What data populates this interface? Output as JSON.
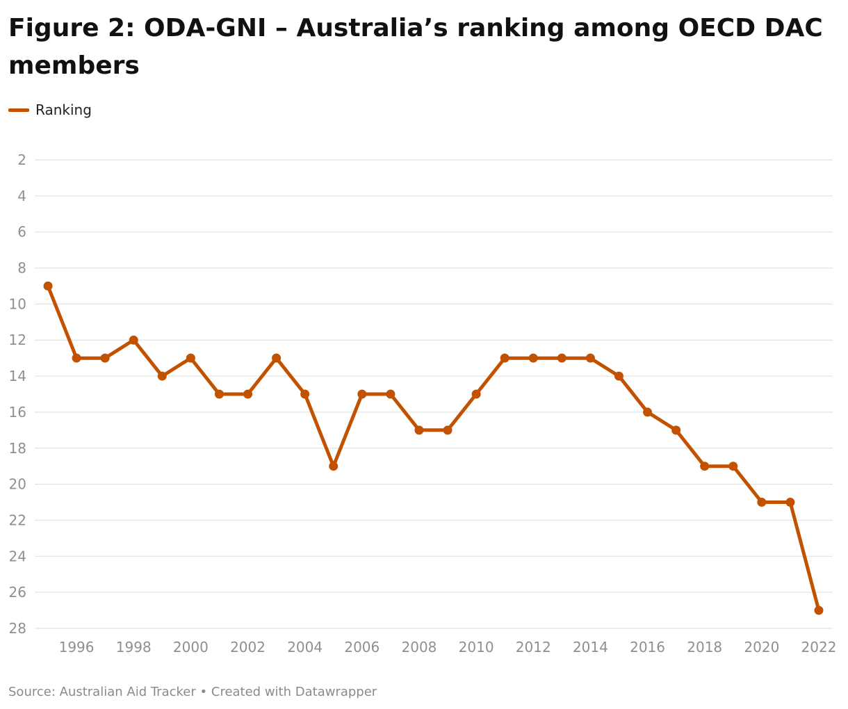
{
  "title": "Figure 2: ODA-GNI – Australia’s ranking among OECD DAC members",
  "legend": {
    "label": "Ranking"
  },
  "footer": {
    "source_label": "Source:",
    "source": "Australian Aid Tracker",
    "separator": "•",
    "credit": "Created with Datawrapper"
  },
  "colors": {
    "line": "#c25100",
    "grid": "#e2e2e2",
    "tick_text": "#8f8f8f"
  },
  "chart_data": {
    "type": "line",
    "title": "Figure 2: ODA-GNI – Australia’s ranking among OECD DAC members",
    "xlabel": "",
    "ylabel": "",
    "y_inverted": true,
    "ylim": [
      2,
      28
    ],
    "xlim": [
      1995,
      2022
    ],
    "y_ticks": [
      2,
      4,
      6,
      8,
      10,
      12,
      14,
      16,
      18,
      20,
      22,
      24,
      26,
      28
    ],
    "x_ticks": [
      1996,
      1998,
      2000,
      2002,
      2004,
      2006,
      2008,
      2010,
      2012,
      2014,
      2016,
      2018,
      2020,
      2022
    ],
    "grid": true,
    "legend_position": "top-left",
    "x": [
      1995,
      1996,
      1997,
      1998,
      1999,
      2000,
      2001,
      2002,
      2003,
      2004,
      2005,
      2006,
      2007,
      2008,
      2009,
      2010,
      2011,
      2012,
      2013,
      2014,
      2015,
      2016,
      2017,
      2018,
      2019,
      2020,
      2021,
      2022
    ],
    "series": [
      {
        "name": "Ranking",
        "values": [
          9,
          13,
          13,
          12,
          14,
          13,
          15,
          15,
          13,
          15,
          19,
          15,
          15,
          17,
          17,
          15,
          13,
          13,
          13,
          13,
          14,
          16,
          17,
          19,
          19,
          21,
          21,
          27
        ]
      }
    ]
  }
}
